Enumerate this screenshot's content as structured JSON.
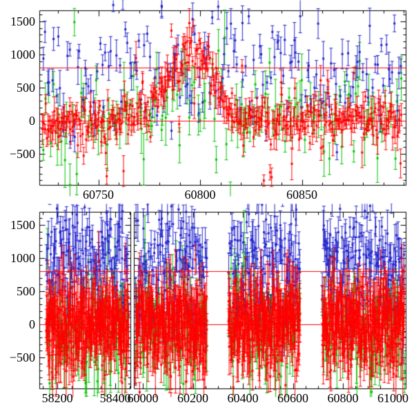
{
  "figure": {
    "background": "#ffffff",
    "frame_color": "#000000",
    "tick_label_color": "#000000",
    "reference_line_color": "#ff0000",
    "series_colors": {
      "red": "#ff0000",
      "green": "#00c300",
      "blue": "#2222ce"
    }
  },
  "chart_data": [
    {
      "type": "scatter",
      "panel": "top",
      "description": "time-series scatter with vertical error bars, flare peak near x=60798",
      "xlim": [
        60721,
        60901
      ],
      "ylim": [
        -970,
        1667
      ],
      "x_major_ticks": [
        60750,
        60800,
        60850
      ],
      "x_tick_labels": [
        "60750",
        "60800",
        "60850"
      ],
      "x_minor_step": 10,
      "y_major_ticks": [
        -500,
        0,
        500,
        1000,
        1500
      ],
      "y_tick_labels": [
        "−500",
        "0",
        "500",
        "1000",
        "1500"
      ],
      "y_minor_step": 100,
      "grid": false,
      "legend": false,
      "hlines": [
        800,
        0
      ],
      "flare": {
        "center": 60798,
        "amplitude": 1080,
        "rise_sigma": 13,
        "fall_sigma": 8
      },
      "series": [
        {
          "name": "red-series",
          "color": "#ff0000",
          "n": 400,
          "x_range": [
            60722,
            60899
          ],
          "y_mean": 0,
          "y_sigma": 145,
          "err_min": 70,
          "err_max": 250,
          "outlier_frac": 0.07,
          "outlier_scale": 550,
          "flare_factor": 1
        },
        {
          "name": "green-series",
          "color": "#00c300",
          "n": 135,
          "x_range": [
            60722,
            60899
          ],
          "y_mean": 50,
          "y_sigma": 290,
          "err_min": 140,
          "err_max": 430,
          "outlier_frac": 0.1,
          "outlier_scale": 650,
          "flare_factor": 0.35
        },
        {
          "name": "blue-series",
          "color": "#2222ce",
          "n": 165,
          "x_range": [
            60722,
            60899
          ],
          "y_mean": 780,
          "y_sigma": 480,
          "err_min": 90,
          "err_max": 270,
          "outlier_frac": 0.05,
          "outlier_scale": 350,
          "flare_factor": 0
        }
      ],
      "extra_segments": [
        {
          "x1": 60820,
          "y1": 185,
          "x2": 60825,
          "y2": 90
        }
      ]
    },
    {
      "type": "scatter",
      "panel": "bottom",
      "description": "broken-axis time-series scatter, four dense observing-season clusters",
      "broken_axis": true,
      "segments": [
        {
          "xlim": [
            58138,
            58452
          ],
          "x_major_ticks": [
            58200,
            58400
          ],
          "x_tick_labels": [
            "58200",
            "58400"
          ],
          "x_minor_step": 50
        },
        {
          "xlim": [
            59964,
            61051
          ],
          "x_major_ticks": [
            60000,
            60200,
            60400,
            60600,
            60800,
            61000
          ],
          "x_tick_labels": [
            "60000",
            "60200",
            "60400",
            "60600",
            "60800",
            "61000"
          ],
          "x_minor_step": 50
        }
      ],
      "ylim": [
        -970,
        1698
      ],
      "y_major_ticks": [
        -500,
        0,
        500,
        1000,
        1500
      ],
      "y_tick_labels": [
        "−500",
        "0",
        "500",
        "1000",
        "1500"
      ],
      "y_minor_step": 100,
      "grid": false,
      "legend": false,
      "hlines": [
        800,
        0
      ],
      "clusters": [
        {
          "segment": 0,
          "x_range": [
            58160,
            58445
          ]
        },
        {
          "segment": 1,
          "x_range": [
            59968,
            60255
          ]
        },
        {
          "segment": 1,
          "x_range": [
            60340,
            60628
          ]
        },
        {
          "segment": 1,
          "x_range": [
            60715,
            61045
          ]
        }
      ],
      "series": [
        {
          "name": "red-series",
          "color": "#ff0000",
          "density": 2.7,
          "y_mean": 0,
          "y_sigma": 320,
          "err_min": 140,
          "err_max": 450
        },
        {
          "name": "green-series",
          "color": "#00c300",
          "density": 0.75,
          "y_mean": -30,
          "y_sigma": 430,
          "err_min": 180,
          "err_max": 520
        },
        {
          "name": "blue-series",
          "color": "#2222ce",
          "density": 1.15,
          "y_mean": 930,
          "y_sigma": 430,
          "err_min": 110,
          "err_max": 360
        }
      ]
    }
  ]
}
